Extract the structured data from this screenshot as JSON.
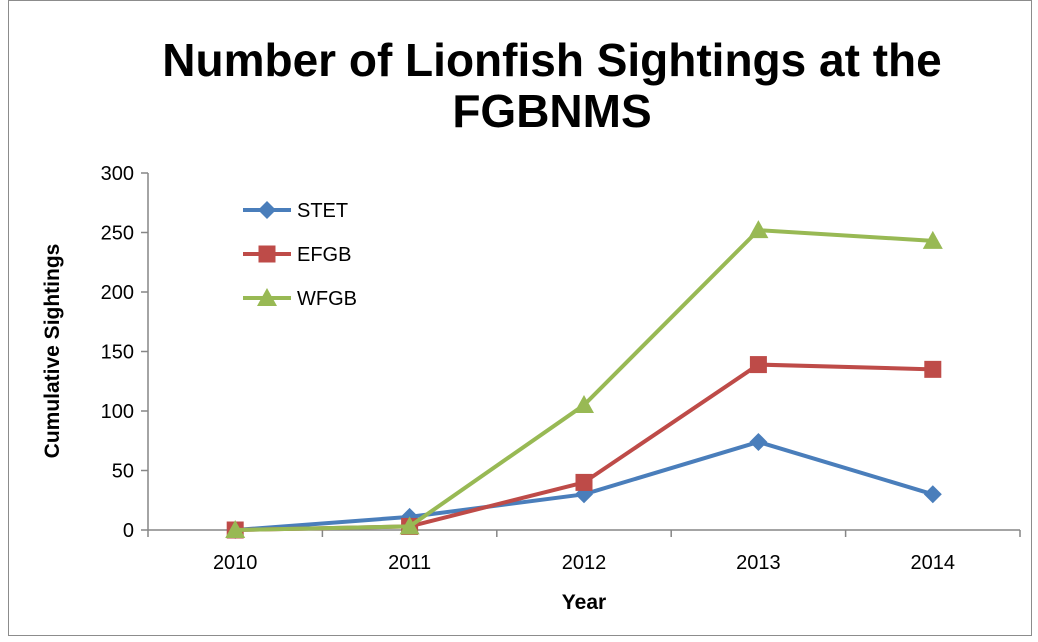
{
  "chart_data": {
    "type": "line",
    "title": "Number of Lionfish Sightings at the FGBNMS",
    "title_lines": [
      "Number of Lionfish Sightings at the",
      "FGBNMS"
    ],
    "xlabel": "Year",
    "ylabel": "Cumulative Sightings",
    "categories": [
      "2010",
      "2011",
      "2012",
      "2013",
      "2014"
    ],
    "ylim": [
      0,
      300
    ],
    "yticks": [
      0,
      50,
      100,
      150,
      200,
      250,
      300
    ],
    "grid": false,
    "legend_position": "top-left",
    "series": [
      {
        "name": "STET",
        "values": [
          0,
          11,
          30,
          74,
          30
        ],
        "color": "#4a7ebb",
        "marker": "diamond"
      },
      {
        "name": "EFGB",
        "values": [
          0,
          3,
          40,
          139,
          135
        ],
        "color": "#be4b48",
        "marker": "square"
      },
      {
        "name": "WFGB",
        "values": [
          0,
          3,
          105,
          252,
          243
        ],
        "color": "#98b954",
        "marker": "triangle"
      }
    ]
  }
}
